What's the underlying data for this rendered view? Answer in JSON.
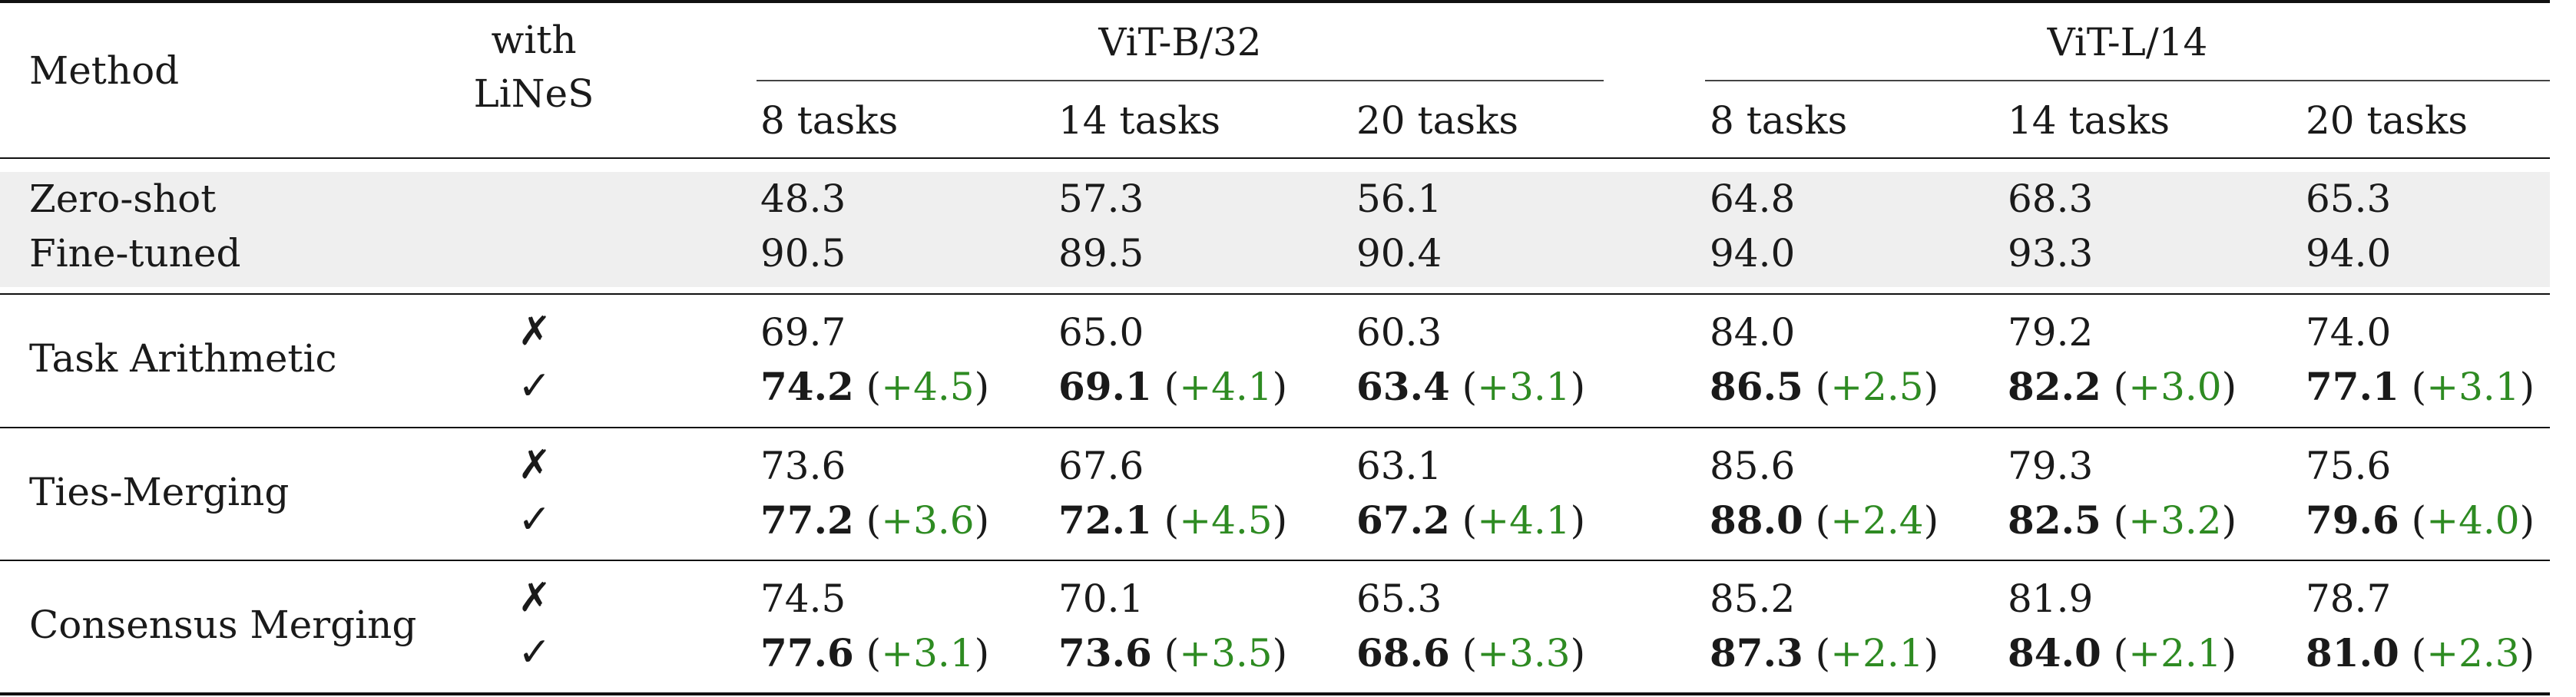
{
  "table": {
    "headers": {
      "method": "Method",
      "with_lines_1": "with",
      "with_lines_2": "LiNeS",
      "groups": [
        {
          "name": "ViT-B/32",
          "tasks": [
            "8 tasks",
            "14 tasks",
            "20 tasks"
          ]
        },
        {
          "name": "ViT-L/14",
          "tasks": [
            "8 tasks",
            "14 tasks",
            "20 tasks"
          ]
        }
      ]
    },
    "baselines": [
      {
        "method": "Zero-shot",
        "values": [
          "48.3",
          "57.3",
          "56.1",
          "64.8",
          "68.3",
          "65.3"
        ]
      },
      {
        "method": "Fine-tuned",
        "values": [
          "90.5",
          "89.5",
          "90.4",
          "94.0",
          "93.3",
          "94.0"
        ]
      }
    ],
    "check_marks": {
      "without": "✗",
      "with": "✓"
    },
    "methods": [
      {
        "name": "Task Arithmetic",
        "without": [
          "69.7",
          "65.0",
          "60.3",
          "84.0",
          "79.2",
          "74.0"
        ],
        "with": [
          "74.2",
          "69.1",
          "63.4",
          "86.5",
          "82.2",
          "77.1"
        ],
        "gains": [
          "+4.5",
          "+4.1",
          "+3.1",
          "+2.5",
          "+3.0",
          "+3.1"
        ]
      },
      {
        "name": "Ties-Merging",
        "without": [
          "73.6",
          "67.6",
          "63.1",
          "85.6",
          "79.3",
          "75.6"
        ],
        "with": [
          "77.2",
          "72.1",
          "67.2",
          "88.0",
          "82.5",
          "79.6"
        ],
        "gains": [
          "+3.6",
          "+4.5",
          "+4.1",
          "+2.4",
          "+3.2",
          "+4.0"
        ]
      },
      {
        "name": "Consensus Merging",
        "without": [
          "74.5",
          "70.1",
          "65.3",
          "85.2",
          "81.9",
          "78.7"
        ],
        "with": [
          "77.6",
          "73.6",
          "68.6",
          "87.3",
          "84.0",
          "81.0"
        ],
        "gains": [
          "+3.1",
          "+3.5",
          "+3.3",
          "+2.1",
          "+2.1",
          "+2.3"
        ]
      }
    ]
  },
  "colors": {
    "gain": "#2e8b22",
    "baseline_shade": "#efefef"
  }
}
